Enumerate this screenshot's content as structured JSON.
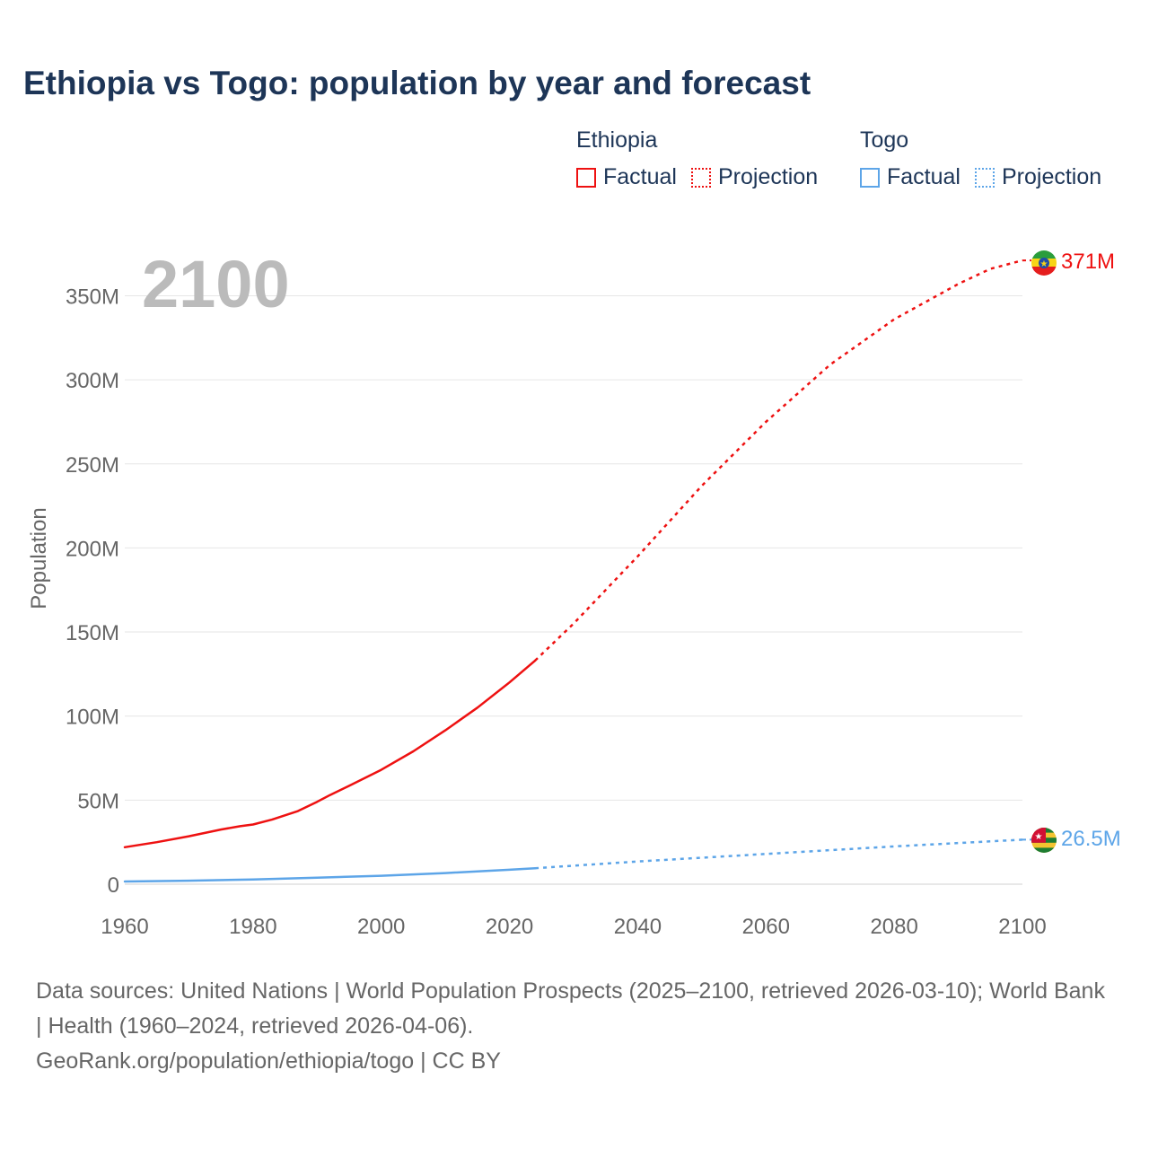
{
  "title": "Ethiopia vs Togo: population by year and forecast",
  "legend": [
    {
      "country": "Ethiopia",
      "color": "#ee1111",
      "factual": "Factual",
      "projection": "Projection"
    },
    {
      "country": "Togo",
      "color": "#5da5e8",
      "factual": "Factual",
      "projection": "Projection"
    }
  ],
  "year_watermark": "2100",
  "sources": {
    "line1": "Data sources: United Nations | World Population Prospects (2025–2100, retrieved 2026-03-10); World Bank | Health (1960–2024, retrieved 2026-04-06).",
    "line2": "GeoRank.org/population/ethiopia/togo | CC BY"
  },
  "chart_data": {
    "type": "line",
    "title": "Ethiopia vs Togo: population by year and forecast",
    "xlabel": "",
    "ylabel": "Population",
    "xlim": [
      1960,
      2100
    ],
    "ylim": [
      0,
      370000000
    ],
    "x_ticks": [
      1960,
      1980,
      2000,
      2020,
      2040,
      2060,
      2080,
      2100
    ],
    "x_tick_labels": [
      "1960",
      "1980",
      "2000",
      "2020",
      "2040",
      "2060",
      "2080",
      "2100"
    ],
    "y_ticks": [
      0,
      50000000,
      100000000,
      150000000,
      200000000,
      250000000,
      300000000,
      350000000
    ],
    "y_tick_labels": [
      "0",
      "50M",
      "100M",
      "150M",
      "200M",
      "250M",
      "300M",
      "350M"
    ],
    "grid": true,
    "series": [
      {
        "name": "Ethiopia",
        "color": "#ee1111",
        "end_label": "371M",
        "factual": {
          "x": [
            1960,
            1965,
            1970,
            1975,
            1978,
            1980,
            1983,
            1987,
            1990,
            1992,
            1995,
            2000,
            2005,
            2010,
            2015,
            2020,
            2024
          ],
          "y": [
            22000000,
            25000000,
            28500000,
            32500000,
            34500000,
            35500000,
            38500000,
            43500000,
            49000000,
            53000000,
            58500000,
            68000000,
            79000000,
            91500000,
            105000000,
            120000000,
            133000000
          ]
        },
        "projection": {
          "x": [
            2024,
            2030,
            2040,
            2050,
            2060,
            2070,
            2080,
            2090,
            2095,
            2100
          ],
          "y": [
            133000000,
            155000000,
            195000000,
            237000000,
            275000000,
            309000000,
            336000000,
            357000000,
            366000000,
            371000000
          ]
        }
      },
      {
        "name": "Togo",
        "color": "#5da5e8",
        "end_label": "26.5M",
        "factual": {
          "x": [
            1960,
            1970,
            1980,
            1990,
            2000,
            2010,
            2020,
            2024
          ],
          "y": [
            1600000,
            2100000,
            2800000,
            3900000,
            5000000,
            6600000,
            8600000,
            9500000
          ]
        },
        "projection": {
          "x": [
            2024,
            2040,
            2060,
            2080,
            2100
          ],
          "y": [
            9500000,
            13500000,
            18000000,
            22500000,
            26500000
          ]
        }
      }
    ]
  }
}
